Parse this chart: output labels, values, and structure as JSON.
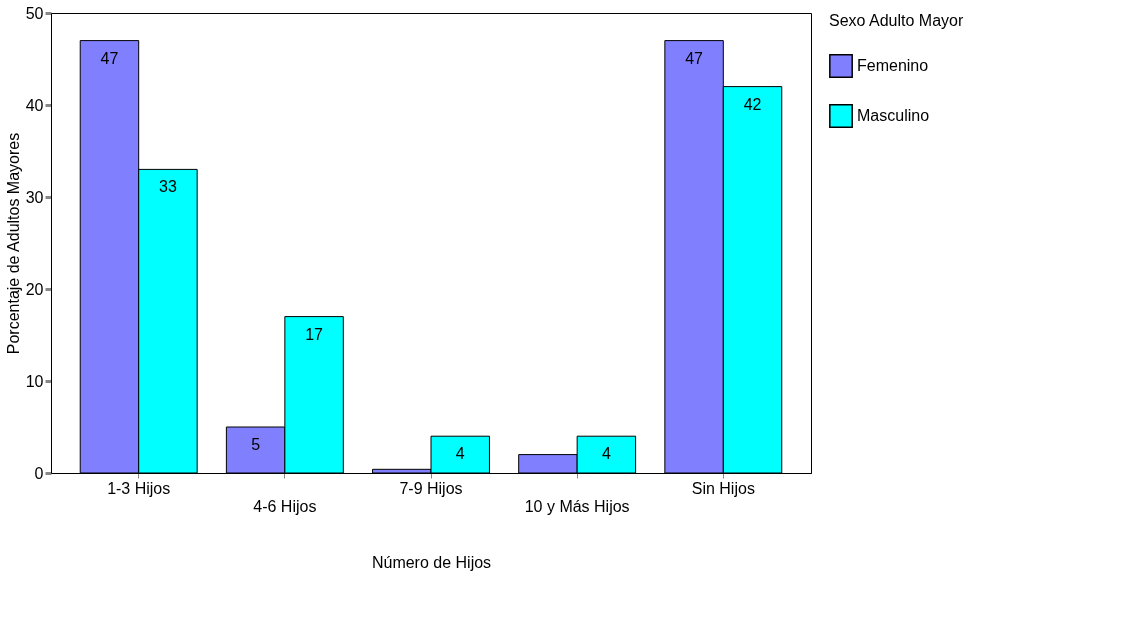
{
  "chart_data": {
    "type": "bar",
    "categories": [
      "1-3 Hijos",
      "4-6 Hijos",
      "7-9 Hijos",
      "10 y Más Hijos",
      "Sin Hijos"
    ],
    "series": [
      {
        "name": "Femenino",
        "color": "#8080ff",
        "values": [
          47,
          5,
          0.4,
          2,
          47
        ],
        "value_labels": [
          "47",
          "5",
          null,
          null,
          "47"
        ]
      },
      {
        "name": "Masculino",
        "color": "#00ffff",
        "values": [
          33,
          17,
          4,
          4,
          42
        ],
        "value_labels": [
          "33",
          "17",
          "4",
          "4",
          "42"
        ]
      }
    ],
    "xlabel": "Número de Hijos",
    "ylabel": "Porcentaje de Adultos Mayores",
    "legend_title": "Sexo Adulto Mayor",
    "ylim": [
      0,
      50
    ],
    "yticks": [
      0,
      10,
      20,
      30,
      40,
      50
    ],
    "grid": false,
    "legend": "right"
  }
}
